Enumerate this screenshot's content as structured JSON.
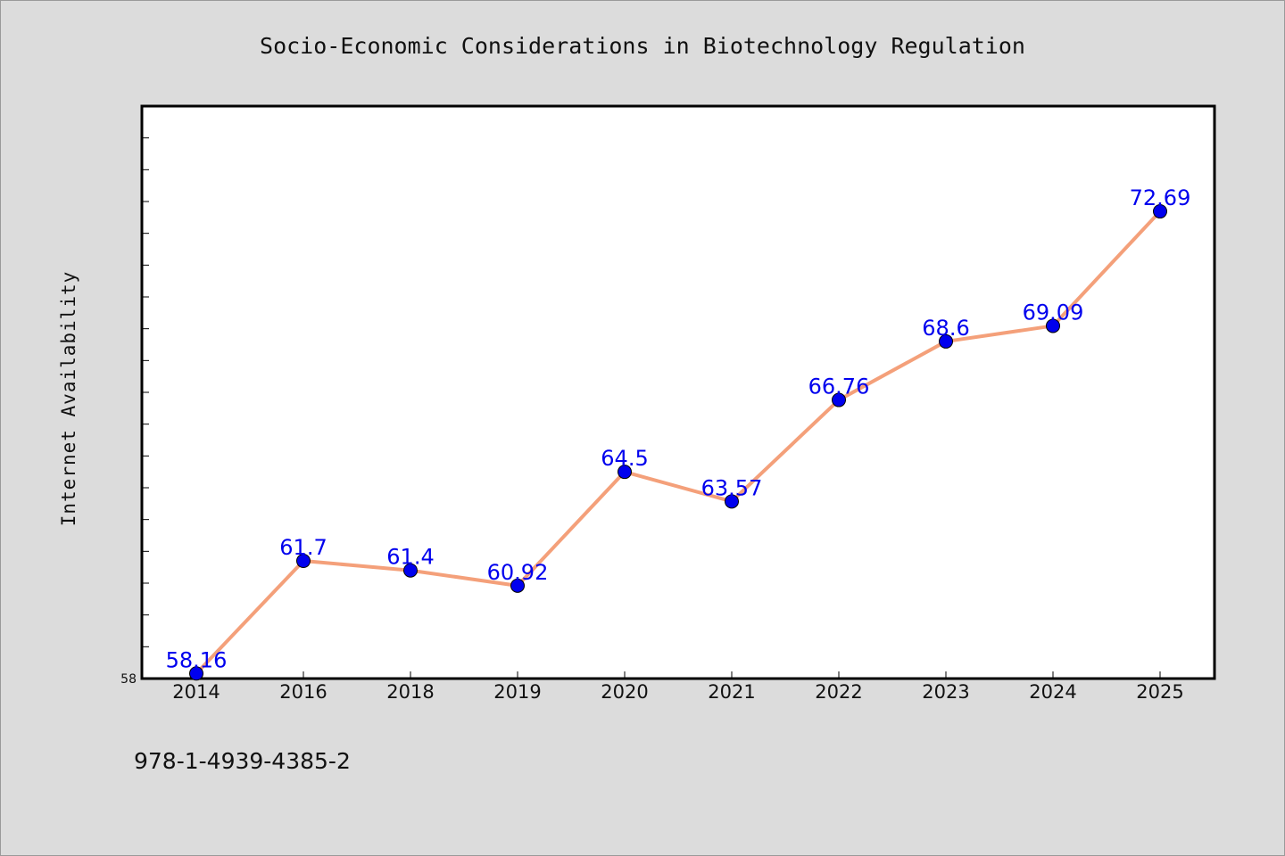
{
  "chart_data": {
    "type": "line",
    "title": "Socio-Economic Considerations in Biotechnology Regulation",
    "xlabel": "",
    "ylabel": "Internet Availability",
    "categories": [
      "2014",
      "2016",
      "2018",
      "2019",
      "2020",
      "2021",
      "2022",
      "2023",
      "2024",
      "2025"
    ],
    "series": [
      {
        "values": [
          58.16,
          61.7,
          61.4,
          60.92,
          64.5,
          63.57,
          66.76,
          68.6,
          69.09,
          72.69
        ],
        "labels": [
          "58.16",
          "61.7",
          "61.4",
          "60.92",
          "64.5",
          "63.57",
          "66.76",
          "68.6",
          "69.09",
          "72.69"
        ]
      }
    ],
    "ylim": [
      58,
      76
    ],
    "y_tick_labels": [
      "58"
    ],
    "line_color": "#f4a07a",
    "marker_color": "#0000ee",
    "label_color": "#0000ee",
    "grid": false,
    "legend": "none"
  },
  "footer": {
    "isbn": "978-1-4939-4385-2"
  }
}
